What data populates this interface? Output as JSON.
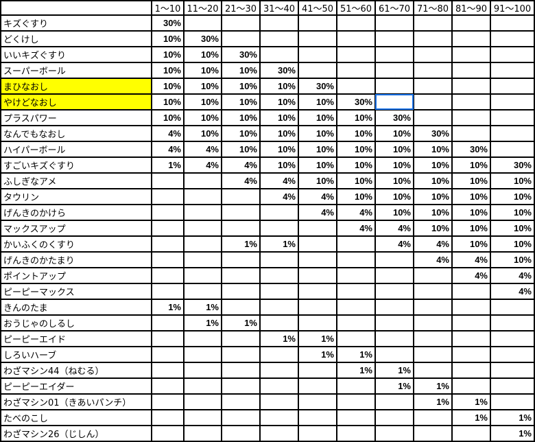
{
  "colors": {
    "highlight": "#ffff00",
    "selection": "#1a73e8"
  },
  "selected_cell": {
    "row": "やけどなおし",
    "column": "61〜70"
  },
  "headers": [
    "",
    "1〜10",
    "11〜20",
    "21〜30",
    "31〜40",
    "41〜50",
    "51〜60",
    "61〜70",
    "71〜80",
    "81〜90",
    "91〜100"
  ],
  "rows": [
    {
      "name": "キズぐすり",
      "cells": [
        "30%",
        "",
        "",
        "",
        "",
        "",
        "",
        "",
        "",
        ""
      ]
    },
    {
      "name": "どくけし",
      "cells": [
        "10%",
        "30%",
        "",
        "",
        "",
        "",
        "",
        "",
        "",
        ""
      ]
    },
    {
      "name": "いいキズぐすり",
      "cells": [
        "10%",
        "10%",
        "30%",
        "",
        "",
        "",
        "",
        "",
        "",
        ""
      ]
    },
    {
      "name": "スーパーボール",
      "cells": [
        "10%",
        "10%",
        "10%",
        "30%",
        "",
        "",
        "",
        "",
        "",
        ""
      ]
    },
    {
      "name": "まひなおし",
      "highlight": true,
      "cells": [
        "10%",
        "10%",
        "10%",
        "10%",
        "30%",
        "",
        "",
        "",
        "",
        ""
      ]
    },
    {
      "name": "やけどなおし",
      "highlight": true,
      "cells": [
        "10%",
        "10%",
        "10%",
        "10%",
        "10%",
        "30%",
        "",
        "",
        "",
        ""
      ]
    },
    {
      "name": "プラスパワー",
      "cells": [
        "10%",
        "10%",
        "10%",
        "10%",
        "10%",
        "10%",
        "30%",
        "",
        "",
        ""
      ]
    },
    {
      "name": "なんでもなおし",
      "cells": [
        "4%",
        "10%",
        "10%",
        "10%",
        "10%",
        "10%",
        "10%",
        "30%",
        "",
        ""
      ]
    },
    {
      "name": "ハイパーボール",
      "cells": [
        "4%",
        "4%",
        "10%",
        "10%",
        "10%",
        "10%",
        "10%",
        "10%",
        "30%",
        ""
      ]
    },
    {
      "name": "すごいキズぐすり",
      "cells": [
        "1%",
        "4%",
        "4%",
        "10%",
        "10%",
        "10%",
        "10%",
        "10%",
        "10%",
        "30%"
      ]
    },
    {
      "name": "ふしぎなアメ",
      "cells": [
        "",
        "",
        "4%",
        "4%",
        "10%",
        "10%",
        "10%",
        "10%",
        "10%",
        "10%"
      ]
    },
    {
      "name": "タウリン",
      "cells": [
        "",
        "",
        "",
        "4%",
        "4%",
        "10%",
        "10%",
        "10%",
        "10%",
        "10%"
      ]
    },
    {
      "name": "げんきのかけら",
      "cells": [
        "",
        "",
        "",
        "",
        "4%",
        "4%",
        "10%",
        "10%",
        "10%",
        "10%"
      ]
    },
    {
      "name": "マックスアップ",
      "cells": [
        "",
        "",
        "",
        "",
        "",
        "4%",
        "4%",
        "10%",
        "10%",
        "10%"
      ]
    },
    {
      "name": "かいふくのくすり",
      "cells": [
        "",
        "",
        "1%",
        "1%",
        "",
        "",
        "4%",
        "4%",
        "10%",
        "10%"
      ]
    },
    {
      "name": "げんきのかたまり",
      "cells": [
        "",
        "",
        "",
        "",
        "",
        "",
        "",
        "4%",
        "4%",
        "10%"
      ]
    },
    {
      "name": "ポイントアップ",
      "cells": [
        "",
        "",
        "",
        "",
        "",
        "",
        "",
        "",
        "4%",
        "4%"
      ]
    },
    {
      "name": "ピーピーマックス",
      "cells": [
        "",
        "",
        "",
        "",
        "",
        "",
        "",
        "",
        "",
        "4%"
      ]
    },
    {
      "name": "きんのたま",
      "cells": [
        "1%",
        "1%",
        "",
        "",
        "",
        "",
        "",
        "",
        "",
        ""
      ]
    },
    {
      "name": "おうじゃのしるし",
      "cells": [
        "",
        "1%",
        "1%",
        "",
        "",
        "",
        "",
        "",
        "",
        ""
      ]
    },
    {
      "name": "ピーピーエイド",
      "cells": [
        "",
        "",
        "",
        "1%",
        "1%",
        "",
        "",
        "",
        "",
        ""
      ]
    },
    {
      "name": "しろいハーブ",
      "cells": [
        "",
        "",
        "",
        "",
        "1%",
        "1%",
        "",
        "",
        "",
        ""
      ]
    },
    {
      "name": "わざマシン44（ねむる）",
      "cells": [
        "",
        "",
        "",
        "",
        "",
        "1%",
        "1%",
        "",
        "",
        ""
      ]
    },
    {
      "name": "ピーピーエイダー",
      "cells": [
        "",
        "",
        "",
        "",
        "",
        "",
        "1%",
        "1%",
        "",
        ""
      ]
    },
    {
      "name": "わざマシン01（きあいパンチ）",
      "cells": [
        "",
        "",
        "",
        "",
        "",
        "",
        "",
        "1%",
        "1%",
        ""
      ]
    },
    {
      "name": "たべのこし",
      "cells": [
        "",
        "",
        "",
        "",
        "",
        "",
        "",
        "",
        "1%",
        "1%"
      ]
    },
    {
      "name": "わざマシン26（じしん）",
      "cells": [
        "",
        "",
        "",
        "",
        "",
        "",
        "",
        "",
        "",
        "1%"
      ]
    }
  ]
}
